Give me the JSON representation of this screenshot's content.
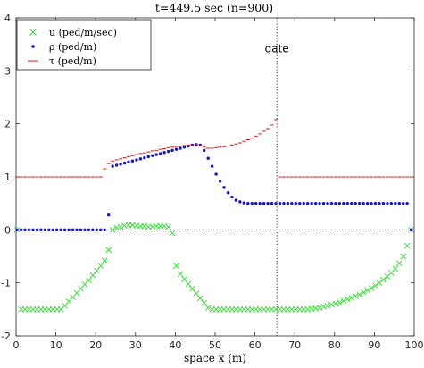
{
  "chart_data": {
    "type": "scatter",
    "title": "t=449.5 sec (n=900)",
    "xlabel": "space x (m)",
    "ylabel": "",
    "xlim": [
      0,
      100
    ],
    "ylim": [
      -2,
      4
    ],
    "xticks": [
      0,
      10,
      20,
      30,
      40,
      50,
      60,
      70,
      80,
      90,
      100
    ],
    "yticks": [
      -2,
      -1,
      0,
      1,
      2,
      3,
      4
    ],
    "grid": false,
    "legend_position": "top-left",
    "annotations": [
      {
        "text": "gate",
        "x": 65.5,
        "y": 3.35
      }
    ],
    "reference_lines": [
      {
        "orientation": "horizontal",
        "value": 0,
        "style": "dotted"
      },
      {
        "orientation": "vertical",
        "value": 65.5,
        "style": "dotted"
      }
    ],
    "series": [
      {
        "name": "u (ped/m/sec)",
        "marker": "x",
        "color": "#2ee02e",
        "x": [
          0.25,
          1.25,
          2.25,
          3.25,
          4.25,
          5.25,
          6.25,
          7.25,
          8.25,
          9.25,
          10.25,
          11.25,
          12.25,
          13.25,
          14.25,
          15.25,
          16.25,
          17.25,
          18.25,
          19.25,
          20.25,
          21.25,
          22.25,
          23.25,
          24.25,
          25.25,
          26.25,
          27.25,
          28.25,
          29.25,
          30.25,
          31.25,
          32.25,
          33.25,
          34.25,
          35.25,
          36.25,
          37.25,
          38.25,
          39.25,
          40.25,
          41.25,
          42.25,
          43.25,
          44.25,
          45.25,
          46.25,
          47.25,
          48.25,
          49.25,
          50.25,
          51.25,
          52.25,
          53.25,
          54.25,
          55.25,
          56.25,
          57.25,
          58.25,
          59.25,
          60.25,
          61.25,
          62.25,
          63.25,
          64.25,
          65.25,
          66.25,
          67.25,
          68.25,
          69.25,
          70.25,
          71.25,
          72.25,
          73.25,
          74.25,
          75.25,
          76.25,
          77.25,
          78.25,
          79.25,
          80.25,
          81.25,
          82.25,
          83.25,
          84.25,
          85.25,
          86.25,
          87.25,
          88.25,
          89.25,
          90.25,
          91.25,
          92.25,
          93.25,
          94.25,
          95.25,
          96.25,
          97.25,
          98.25,
          99.25
        ],
        "y": [
          0.0,
          -1.5,
          -1.5,
          -1.5,
          -1.5,
          -1.5,
          -1.5,
          -1.5,
          -1.5,
          -1.5,
          -1.5,
          -1.5,
          -1.43,
          -1.35,
          -1.27,
          -1.19,
          -1.11,
          -1.03,
          -0.95,
          -0.86,
          -0.77,
          -0.68,
          -0.58,
          -0.38,
          0.0,
          0.04,
          0.06,
          0.08,
          0.09,
          0.09,
          0.08,
          0.07,
          0.07,
          0.06,
          0.06,
          0.07,
          0.07,
          0.07,
          0.06,
          -0.06,
          -0.68,
          -0.83,
          -0.93,
          -1.02,
          -1.11,
          -1.2,
          -1.29,
          -1.38,
          -1.47,
          -1.5,
          -1.5,
          -1.5,
          -1.5,
          -1.5,
          -1.5,
          -1.5,
          -1.5,
          -1.5,
          -1.5,
          -1.5,
          -1.5,
          -1.5,
          -1.5,
          -1.5,
          -1.5,
          -1.5,
          -1.5,
          -1.5,
          -1.5,
          -1.5,
          -1.5,
          -1.5,
          -1.5,
          -1.5,
          -1.49,
          -1.48,
          -1.47,
          -1.45,
          -1.43,
          -1.41,
          -1.39,
          -1.37,
          -1.34,
          -1.31,
          -1.28,
          -1.25,
          -1.22,
          -1.18,
          -1.14,
          -1.1,
          -1.05,
          -1.0,
          -0.94,
          -0.88,
          -0.81,
          -0.73,
          -0.63,
          -0.5,
          -0.3,
          0.0
        ]
      },
      {
        "name": "ρ (ped/m)",
        "marker": "dot",
        "color": "#1414d6",
        "x": [
          0.25,
          1.25,
          2.25,
          3.25,
          4.25,
          5.25,
          6.25,
          7.25,
          8.25,
          9.25,
          10.25,
          11.25,
          12.25,
          13.25,
          14.25,
          15.25,
          16.25,
          17.25,
          18.25,
          19.25,
          20.25,
          21.25,
          22.25,
          23.25,
          24.25,
          25.25,
          26.25,
          27.25,
          28.25,
          29.25,
          30.25,
          31.25,
          32.25,
          33.25,
          34.25,
          35.25,
          36.25,
          37.25,
          38.25,
          39.25,
          40.25,
          41.25,
          42.25,
          43.25,
          44.25,
          45.25,
          46.25,
          47.25,
          48.25,
          49.25,
          50.25,
          51.25,
          52.25,
          53.25,
          54.25,
          55.25,
          56.25,
          57.25,
          58.25,
          59.25,
          60.25,
          61.25,
          62.25,
          63.25,
          64.25,
          65.25,
          66.25,
          67.25,
          68.25,
          69.25,
          70.25,
          71.25,
          72.25,
          73.25,
          74.25,
          75.25,
          76.25,
          77.25,
          78.25,
          79.25,
          80.25,
          81.25,
          82.25,
          83.25,
          84.25,
          85.25,
          86.25,
          87.25,
          88.25,
          89.25,
          90.25,
          91.25,
          92.25,
          93.25,
          94.25,
          95.25,
          96.25,
          97.25,
          98.25,
          99.25
        ],
        "y": [
          0.0,
          0.0,
          0.0,
          0.0,
          0.0,
          0.0,
          0.0,
          0.0,
          0.0,
          0.0,
          0.0,
          0.0,
          0.0,
          0.0,
          0.0,
          0.0,
          0.0,
          0.0,
          0.0,
          0.0,
          0.0,
          0.0,
          0.0,
          0.28,
          1.2,
          1.22,
          1.24,
          1.26,
          1.28,
          1.3,
          1.32,
          1.34,
          1.36,
          1.38,
          1.4,
          1.42,
          1.44,
          1.46,
          1.48,
          1.5,
          1.52,
          1.54,
          1.56,
          1.58,
          1.6,
          1.61,
          1.6,
          1.5,
          1.35,
          1.2,
          1.05,
          0.92,
          0.8,
          0.7,
          0.62,
          0.56,
          0.53,
          0.51,
          0.5,
          0.5,
          0.5,
          0.5,
          0.5,
          0.5,
          0.5,
          0.5,
          0.5,
          0.5,
          0.5,
          0.5,
          0.5,
          0.5,
          0.5,
          0.5,
          0.5,
          0.5,
          0.5,
          0.5,
          0.5,
          0.5,
          0.5,
          0.5,
          0.5,
          0.5,
          0.5,
          0.5,
          0.5,
          0.5,
          0.5,
          0.5,
          0.5,
          0.5,
          0.5,
          0.5,
          0.5,
          0.5,
          0.5,
          0.5,
          0.5,
          0.0
        ]
      },
      {
        "name": "τ (ped/m)",
        "marker": "dash",
        "color": "#e01414",
        "x": [
          0.25,
          1.25,
          2.25,
          3.25,
          4.25,
          5.25,
          6.25,
          7.25,
          8.25,
          9.25,
          10.25,
          11.25,
          12.25,
          13.25,
          14.25,
          15.25,
          16.25,
          17.25,
          18.25,
          19.25,
          20.25,
          21.25,
          22.25,
          23.25,
          24.25,
          25.25,
          26.25,
          27.25,
          28.25,
          29.25,
          30.25,
          31.25,
          32.25,
          33.25,
          34.25,
          35.25,
          36.25,
          37.25,
          38.25,
          39.25,
          40.25,
          41.25,
          42.25,
          43.25,
          44.25,
          45.25,
          46.25,
          47.25,
          48.25,
          49.25,
          50.25,
          51.25,
          52.25,
          53.25,
          54.25,
          55.25,
          56.25,
          57.25,
          58.25,
          59.25,
          60.25,
          61.25,
          62.25,
          63.25,
          64.25,
          65.25,
          66.25,
          67.25,
          68.25,
          69.25,
          70.25,
          71.25,
          72.25,
          73.25,
          74.25,
          75.25,
          76.25,
          77.25,
          78.25,
          79.25,
          80.25,
          81.25,
          82.25,
          83.25,
          84.25,
          85.25,
          86.25,
          87.25,
          88.25,
          89.25,
          90.25,
          91.25,
          92.25,
          93.25,
          94.25,
          95.25,
          96.25,
          97.25,
          98.25,
          99.25
        ],
        "y": [
          1.0,
          1.0,
          1.0,
          1.0,
          1.0,
          1.0,
          1.0,
          1.0,
          1.0,
          1.0,
          1.0,
          1.0,
          1.0,
          1.0,
          1.0,
          1.0,
          1.0,
          1.0,
          1.0,
          1.0,
          1.0,
          1.0,
          1.15,
          1.25,
          1.3,
          1.32,
          1.34,
          1.36,
          1.38,
          1.4,
          1.42,
          1.44,
          1.45,
          1.47,
          1.49,
          1.5,
          1.52,
          1.53,
          1.55,
          1.56,
          1.57,
          1.58,
          1.59,
          1.6,
          1.61,
          1.61,
          1.59,
          1.56,
          1.54,
          1.54,
          1.55,
          1.56,
          1.57,
          1.58,
          1.6,
          1.62,
          1.64,
          1.67,
          1.7,
          1.73,
          1.77,
          1.81,
          1.86,
          1.91,
          1.98,
          2.08,
          1.0,
          1.0,
          1.0,
          1.0,
          1.0,
          1.0,
          1.0,
          1.0,
          1.0,
          1.0,
          1.0,
          1.0,
          1.0,
          1.0,
          1.0,
          1.0,
          1.0,
          1.0,
          1.0,
          1.0,
          1.0,
          1.0,
          1.0,
          1.0,
          1.0,
          1.0,
          1.0,
          1.0,
          1.0,
          1.0,
          1.0,
          1.0,
          1.0,
          1.0
        ]
      }
    ]
  }
}
